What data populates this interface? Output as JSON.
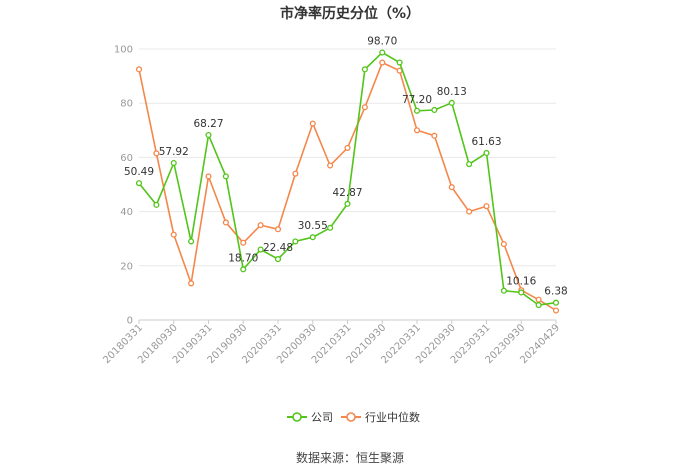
{
  "title": "市净率历史分位（%）",
  "source": "数据来源：恒生聚源",
  "chart_data": {
    "type": "line",
    "ylim": [
      0,
      100
    ],
    "yticks": [
      0,
      20,
      40,
      60,
      80,
      100
    ],
    "grid": true,
    "legend_position": "bottom",
    "x": [
      "20180331",
      "20180630",
      "20180930",
      "20181231",
      "20190331",
      "20190630",
      "20190930",
      "20191231",
      "20200331",
      "20200630",
      "20200930",
      "20201231",
      "20210331",
      "20210630",
      "20210930",
      "20211231",
      "20220331",
      "20220630",
      "20220930",
      "20221231",
      "20230331",
      "20230630",
      "20230930",
      "20231231",
      "20240429"
    ],
    "xtick_labels": [
      "20180331",
      "20180930",
      "20190331",
      "20190930",
      "20200331",
      "20200930",
      "20210331",
      "20210930",
      "20220331",
      "20220930",
      "20230331",
      "20230930",
      "20240429"
    ],
    "series": [
      {
        "name": "公司",
        "color": "#52c41a",
        "values": [
          50.49,
          42.5,
          57.92,
          29.0,
          68.27,
          53.0,
          18.7,
          26.0,
          22.48,
          29.0,
          30.55,
          34.0,
          42.87,
          92.5,
          98.7,
          95.0,
          77.2,
          77.5,
          80.13,
          57.5,
          61.63,
          10.8,
          10.16,
          5.5,
          6.38
        ],
        "labels": {
          "0": "50.49",
          "2": "57.92",
          "4": "68.27",
          "6": "18.70",
          "8": "22.48",
          "10": "30.55",
          "12": "42.87",
          "14": "98.70",
          "16": "77.20",
          "18": "80.13",
          "20": "61.63",
          "22": "10.16",
          "24": "6.38"
        }
      },
      {
        "name": "行业中位数",
        "color": "#f4874b",
        "values": [
          92.5,
          61.5,
          31.5,
          13.5,
          53.0,
          36.0,
          28.5,
          35.0,
          33.5,
          54.0,
          72.5,
          57.0,
          63.5,
          78.5,
          95.0,
          92.0,
          70.0,
          68.0,
          49.0,
          40.0,
          42.0,
          28.0,
          11.0,
          7.5,
          3.5
        ]
      }
    ]
  }
}
